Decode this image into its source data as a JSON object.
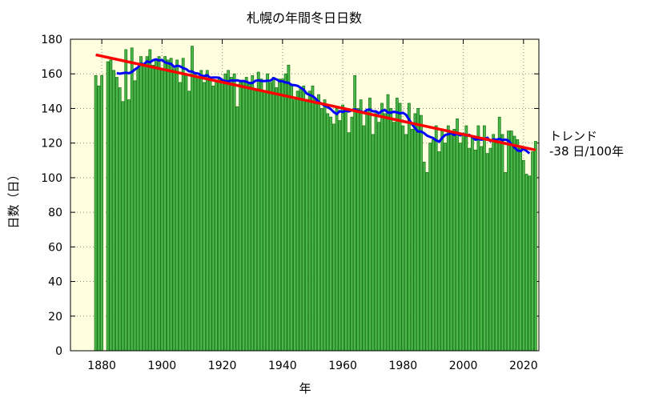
{
  "chart_data": {
    "type": "bar",
    "title": "札幌の年間冬日日数",
    "xlabel": "年",
    "ylabel": "日数（日）",
    "xlim": [
      1870,
      2025
    ],
    "ylim": [
      0,
      180
    ],
    "xticks": [
      1880,
      1900,
      1920,
      1940,
      1960,
      1980,
      2000,
      2020
    ],
    "yticks": [
      0,
      20,
      40,
      60,
      80,
      100,
      120,
      140,
      160,
      180
    ],
    "grid": true,
    "start_year": 1878,
    "values": [
      159,
      153,
      159,
      null,
      167,
      168,
      162,
      158,
      152,
      144,
      174,
      145,
      175,
      156,
      163,
      170,
      165,
      170,
      174,
      165,
      168,
      170,
      163,
      170,
      168,
      169,
      163,
      168,
      155,
      169,
      160,
      150,
      176,
      160,
      158,
      162,
      155,
      162,
      157,
      153,
      156,
      157,
      155,
      160,
      162,
      158,
      160,
      141,
      155,
      156,
      158,
      155,
      159,
      150,
      161,
      157,
      150,
      160,
      155,
      158,
      152,
      157,
      157,
      160,
      165,
      154,
      145,
      150,
      152,
      153,
      145,
      150,
      153,
      145,
      148,
      140,
      145,
      137,
      135,
      131,
      140,
      133,
      142,
      140,
      126,
      135,
      159,
      140,
      145,
      130,
      138,
      146,
      125,
      138,
      132,
      143,
      137,
      148,
      140,
      132,
      146,
      143,
      130,
      125,
      143,
      128,
      137,
      140,
      136,
      109,
      103,
      120,
      122,
      130,
      115,
      127,
      120,
      130,
      125,
      128,
      134,
      120,
      125,
      130,
      117,
      124,
      116,
      130,
      118,
      130,
      114,
      117,
      125,
      120,
      135,
      125,
      103,
      127,
      127,
      124,
      122,
      117,
      110,
      102,
      101,
      115,
      121
    ],
    "moving_average_range": [
      1885,
      2022
    ],
    "trend": {
      "label": "トレンド",
      "rate_label": "-38 日/100年",
      "start": [
        1878,
        171
      ],
      "end": [
        2024,
        116
      ]
    },
    "colors": {
      "bar": "#4cb84c",
      "bar_edge": "#1a7a1a",
      "moving_average": "#0000ff",
      "trend": "#ff0000",
      "background": "#ffffe0"
    }
  }
}
